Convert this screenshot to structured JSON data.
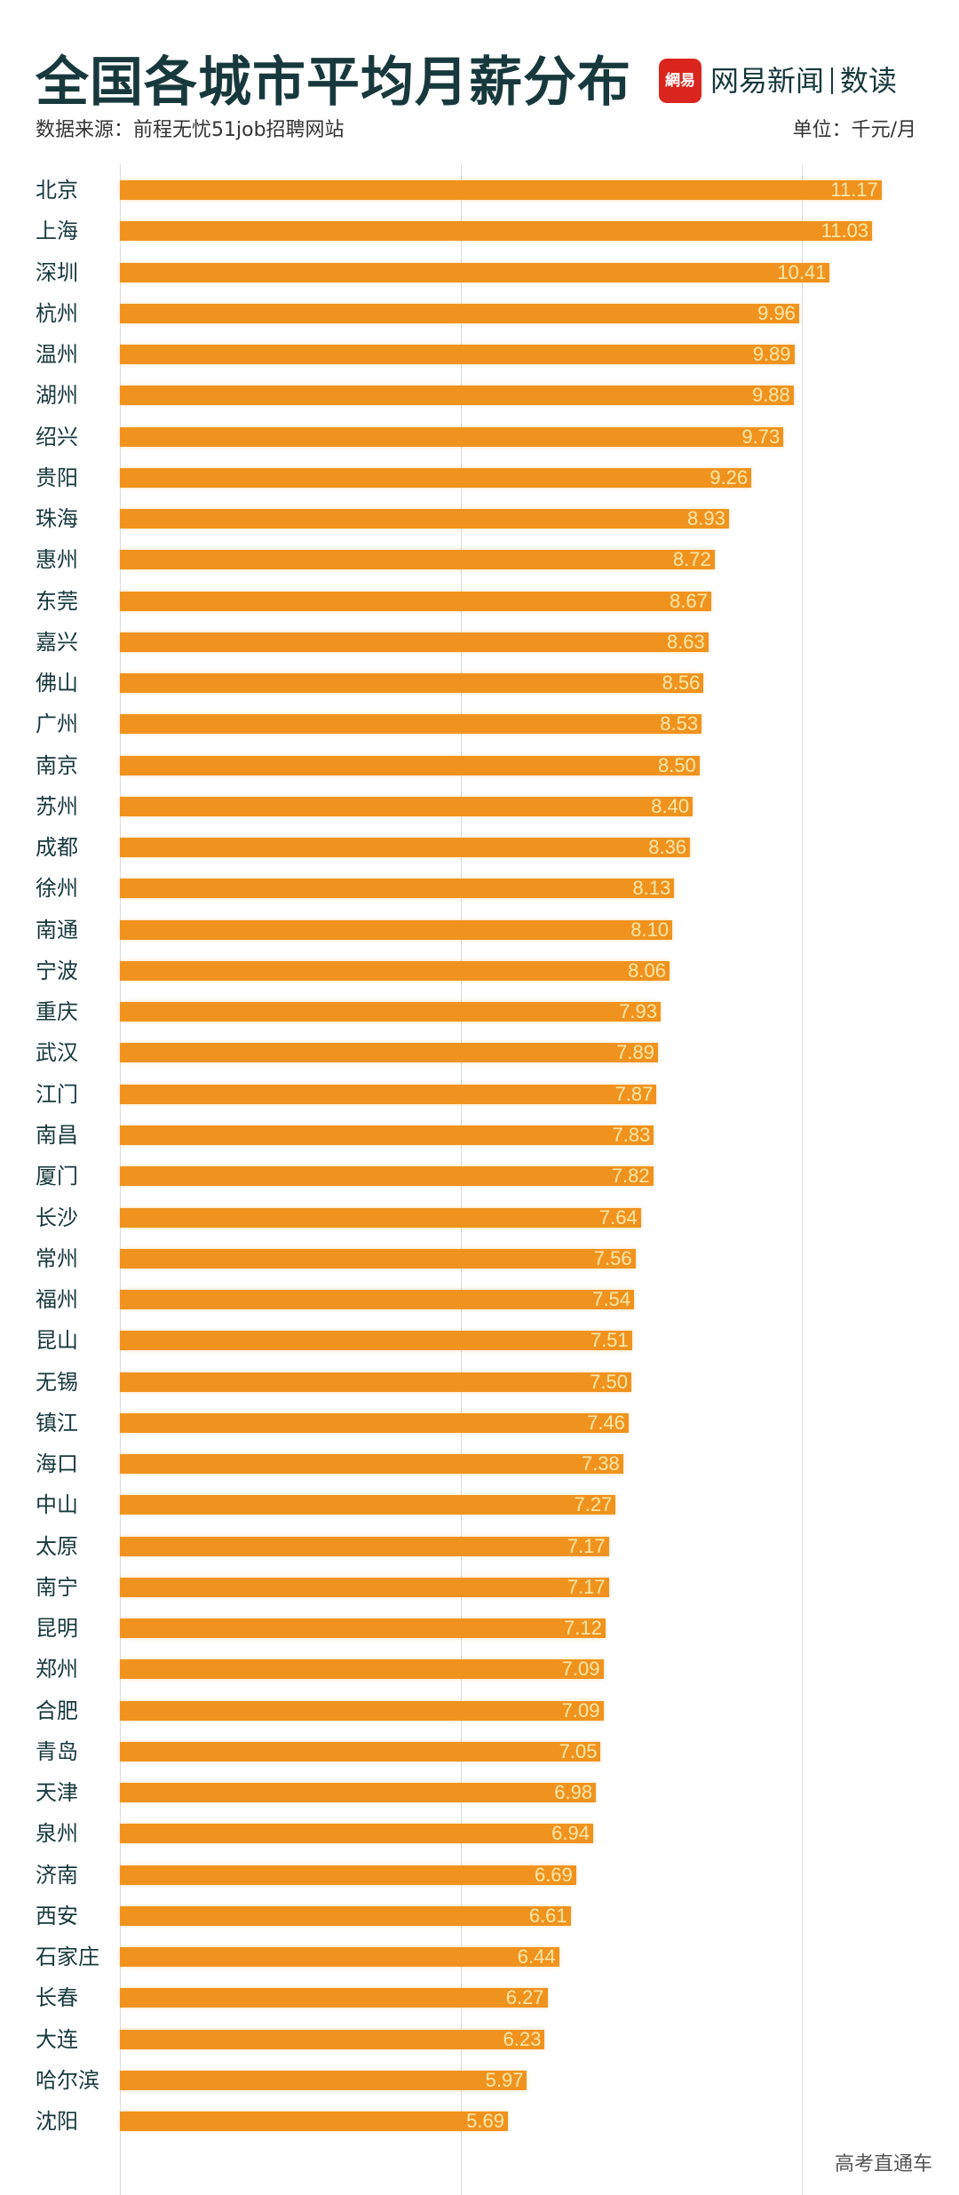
{
  "header": {
    "title": "全国各城市平均月薪分布",
    "logo_mark": "網易",
    "brand_name": "网易新闻",
    "brand_column": "数读",
    "source": "数据来源：前程无忧51job招聘网站",
    "unit": "单位：千元/月"
  },
  "watermark": "高考直通车",
  "colors": {
    "bar": "#f0931e",
    "value_text": "#f7e7a9",
    "title": "#17393d",
    "logo": "#d9251d"
  },
  "chart_data": {
    "type": "bar",
    "orientation": "horizontal",
    "title": "全国各城市平均月薪分布",
    "unit": "千元/月",
    "xlim": [
      0,
      11.5
    ],
    "gridlines": [
      0,
      5,
      10
    ],
    "categories": [
      "北京",
      "上海",
      "深圳",
      "杭州",
      "温州",
      "湖州",
      "绍兴",
      "贵阳",
      "珠海",
      "惠州",
      "东莞",
      "嘉兴",
      "佛山",
      "广州",
      "南京",
      "苏州",
      "成都",
      "徐州",
      "南通",
      "宁波",
      "重庆",
      "武汉",
      "江门",
      "南昌",
      "厦门",
      "长沙",
      "常州",
      "福州",
      "昆山",
      "无锡",
      "镇江",
      "海口",
      "中山",
      "太原",
      "南宁",
      "昆明",
      "郑州",
      "合肥",
      "青岛",
      "天津",
      "泉州",
      "济南",
      "西安",
      "石家庄",
      "长春",
      "大连",
      "哈尔滨",
      "沈阳"
    ],
    "values": [
      11.17,
      11.03,
      10.41,
      9.96,
      9.89,
      9.88,
      9.73,
      9.26,
      8.93,
      8.72,
      8.67,
      8.63,
      8.56,
      8.53,
      8.5,
      8.4,
      8.36,
      8.13,
      8.1,
      8.06,
      7.93,
      7.89,
      7.87,
      7.83,
      7.82,
      7.64,
      7.56,
      7.54,
      7.51,
      7.5,
      7.46,
      7.38,
      7.27,
      7.17,
      7.17,
      7.12,
      7.09,
      7.09,
      7.05,
      6.98,
      6.94,
      6.69,
      6.61,
      6.44,
      6.27,
      6.23,
      5.97,
      5.69
    ],
    "labels": [
      "11.17",
      "11.03",
      "10.41",
      "9.96",
      "9.89",
      "9.88",
      "9.73",
      "9.26",
      "8.93",
      "8.72",
      "8.67",
      "8.63",
      "8.56",
      "8.53",
      "8.50",
      "8.40",
      "8.36",
      "8.13",
      "8.10",
      "8.06",
      "7.93",
      "7.89",
      "7.87",
      "7.83",
      "7.82",
      "7.64",
      "7.56",
      "7.54",
      "7.51",
      "7.50",
      "7.46",
      "7.38",
      "7.27",
      "7.17",
      "7.17",
      "7.12",
      "7.09",
      "7.09",
      "7.05",
      "6.98",
      "6.94",
      "6.69",
      "6.61",
      "6.44",
      "6.27",
      "6.23",
      "5.97",
      "5.69"
    ]
  }
}
